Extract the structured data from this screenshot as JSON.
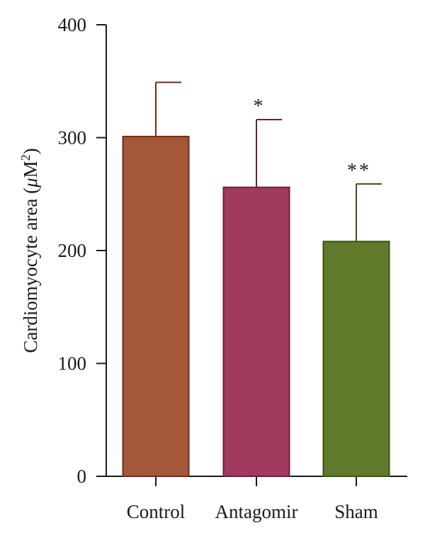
{
  "chart_data": {
    "type": "bar",
    "categories": [
      "Control",
      "Antagomir",
      "Sham"
    ],
    "values": [
      301,
      256,
      208
    ],
    "error_upper": [
      349,
      316,
      259
    ],
    "significance": [
      "",
      "*",
      "**"
    ],
    "ylabel_prefix": "Cardiomyocyte area (",
    "ylabel_mu": "μ",
    "ylabel_unit": "M",
    "ylabel_sup": "2",
    "ylabel_suffix": ")",
    "ylim": [
      0,
      400
    ],
    "yticks": [
      "0",
      "100",
      "200",
      "300",
      "400"
    ],
    "grid": false,
    "colors": [
      {
        "fill": "#a5573a",
        "stroke": "#6e2c17"
      },
      {
        "fill": "#a03a5e",
        "stroke": "#6a1e3a"
      },
      {
        "fill": "#5f7a2a",
        "stroke": "#3a5214"
      }
    ]
  }
}
